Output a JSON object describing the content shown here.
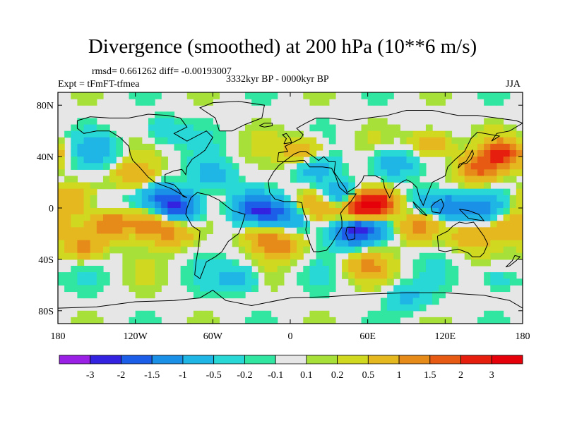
{
  "chart_data": {
    "type": "heatmap",
    "title": "Divergence (smoothed) at 200 hPa (10**6 m/s)",
    "stats": "rmsd= 0.661262 diff= -0.00193007",
    "experiment": "Expt = tFmFT-tfmea",
    "period": "3332kyr BP - 0000kyr BP",
    "season": "JJA",
    "x_ticks": [
      "180",
      "120W",
      "60W",
      "0",
      "60E",
      "120E",
      "180"
    ],
    "x_tick_values": [
      -180,
      -120,
      -60,
      0,
      60,
      120,
      180
    ],
    "y_ticks": [
      "80N",
      "40N",
      "0",
      "40S",
      "80S"
    ],
    "y_tick_values": [
      80,
      40,
      0,
      -40,
      -80
    ],
    "xlim": [
      -180,
      180
    ],
    "ylim": [
      -90,
      90
    ],
    "colorbar_labels": [
      "-3",
      "-2",
      "-1.5",
      "-1",
      "-0.5",
      "-0.2",
      "-0.1",
      "0.1",
      "0.2",
      "0.5",
      "1",
      "1.5",
      "2",
      "3"
    ],
    "colorbar_levels": [
      -3,
      -2,
      -1.5,
      -1,
      -0.5,
      -0.2,
      -0.1,
      0.1,
      0.2,
      0.5,
      1,
      1.5,
      2,
      3
    ],
    "colorbar_colors": [
      "#9a20e6",
      "#3322e0",
      "#1c5ee8",
      "#1a90e6",
      "#1fb6e6",
      "#28d8d6",
      "#30e6a0",
      "#e6e6e6",
      "#a8e03a",
      "#d0d820",
      "#e6b820",
      "#e68a1a",
      "#e65a14",
      "#e61e0e",
      "#e6000a"
    ],
    "field": [
      {
        "lon": 55,
        "lat": 0,
        "value": 3.0
      },
      {
        "lon": 68,
        "lat": 4,
        "value": 2.2
      },
      {
        "lon": 40,
        "lat": 8,
        "value": -1.5
      },
      {
        "lon": 58,
        "lat": -15,
        "value": -2.0
      },
      {
        "lon": 45,
        "lat": -20,
        "value": -1.2
      },
      {
        "lon": 20,
        "lat": 0,
        "value": 1.2
      },
      {
        "lon": 8,
        "lat": -8,
        "value": -0.8
      },
      {
        "lon": -30,
        "lat": 0,
        "value": -1.5
      },
      {
        "lon": -12,
        "lat": -5,
        "value": -1.2
      },
      {
        "lon": -20,
        "lat": -22,
        "value": 1.0
      },
      {
        "lon": -5,
        "lat": -30,
        "value": 1.0
      },
      {
        "lon": -85,
        "lat": 0,
        "value": -2.0
      },
      {
        "lon": -100,
        "lat": 8,
        "value": -1.2
      },
      {
        "lon": -110,
        "lat": -12,
        "value": 1.5
      },
      {
        "lon": -90,
        "lat": -20,
        "value": 1.0
      },
      {
        "lon": -140,
        "lat": -12,
        "value": 1.5
      },
      {
        "lon": -160,
        "lat": -30,
        "value": 1.2
      },
      {
        "lon": -170,
        "lat": 5,
        "value": 1.0
      },
      {
        "lon": -150,
        "lat": 0,
        "value": -0.6
      },
      {
        "lon": -120,
        "lat": 25,
        "value": 1.0
      },
      {
        "lon": -60,
        "lat": 25,
        "value": -0.8
      },
      {
        "lon": -150,
        "lat": 45,
        "value": -0.8
      },
      {
        "lon": -100,
        "lat": 60,
        "value": -0.5
      },
      {
        "lon": 10,
        "lat": 45,
        "value": 1.0
      },
      {
        "lon": 20,
        "lat": 30,
        "value": -0.8
      },
      {
        "lon": 80,
        "lat": 35,
        "value": -1.0
      },
      {
        "lon": 110,
        "lat": 50,
        "value": 1.0
      },
      {
        "lon": 145,
        "lat": 30,
        "value": 1.5
      },
      {
        "lon": 165,
        "lat": 42,
        "value": 2.0
      },
      {
        "lon": 125,
        "lat": 0,
        "value": -1.5
      },
      {
        "lon": 150,
        "lat": 0,
        "value": -1.0
      },
      {
        "lon": 105,
        "lat": 5,
        "value": -0.8
      },
      {
        "lon": 100,
        "lat": -15,
        "value": 1.2
      },
      {
        "lon": 140,
        "lat": -22,
        "value": 1.0
      },
      {
        "lon": 170,
        "lat": -15,
        "value": 1.0
      },
      {
        "lon": 60,
        "lat": -45,
        "value": 1.0
      },
      {
        "lon": -40,
        "lat": -55,
        "value": -0.8
      },
      {
        "lon": 90,
        "lat": -70,
        "value": -0.6
      },
      {
        "lon": 160,
        "lat": -55,
        "value": -0.5
      }
    ]
  }
}
